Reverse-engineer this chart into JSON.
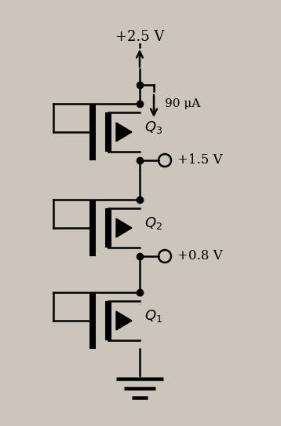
{
  "bg_color": "#cbc5bc",
  "line_color": "black",
  "lw": 1.8,
  "vdd_label": "+2.5 V",
  "current_label": "90 μA",
  "v15_label": "+1.5 V",
  "v08_label": "+0.8 V",
  "q3_label": "$Q_3$",
  "q2_label": "$Q_2$",
  "q1_label": "$Q_1$",
  "figsize": [
    3.58,
    5.42
  ],
  "dpi": 100,
  "xlim": [
    0,
    358
  ],
  "ylim": [
    0,
    542
  ]
}
